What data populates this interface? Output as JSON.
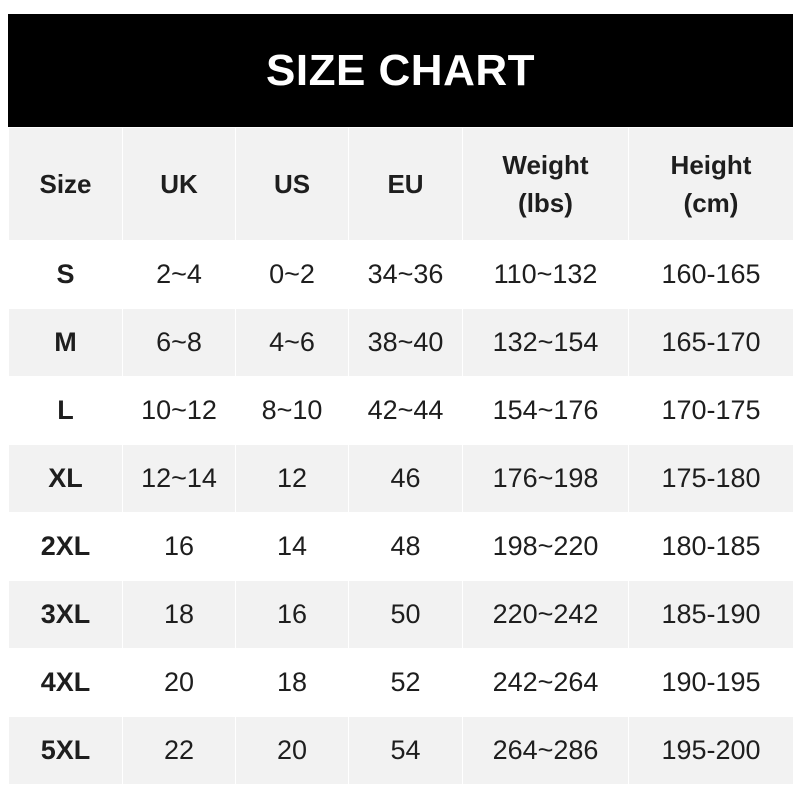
{
  "title": "SIZE CHART",
  "headers": [
    "Size",
    "UK",
    "US",
    "EU",
    "Weight\n(lbs)",
    "Height\n(cm)"
  ],
  "rows": [
    [
      "S",
      "2~4",
      "0~2",
      "34~36",
      "110~132",
      "160-165"
    ],
    [
      "M",
      "6~8",
      "4~6",
      "38~40",
      "132~154",
      "165-170"
    ],
    [
      "L",
      "10~12",
      "8~10",
      "42~44",
      "154~176",
      "170-175"
    ],
    [
      "XL",
      "12~14",
      "12",
      "46",
      "176~198",
      "175-180"
    ],
    [
      "2XL",
      "16",
      "14",
      "48",
      "198~220",
      "180-185"
    ],
    [
      "3XL",
      "18",
      "16",
      "50",
      "220~242",
      "185-190"
    ],
    [
      "4XL",
      "20",
      "18",
      "52",
      "242~264",
      "190-195"
    ],
    [
      "5XL",
      "22",
      "20",
      "54",
      "264~286",
      "195-200"
    ]
  ],
  "colors": {
    "header_bg": "#000000",
    "alt_row": "#f2f2f2"
  }
}
